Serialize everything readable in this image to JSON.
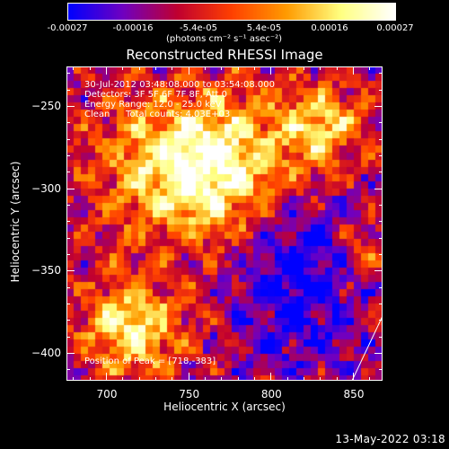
{
  "colorbar": {
    "tick_labels": [
      "-0.00027",
      "-0.00016",
      "-5.4e-05",
      "5.4e-05",
      "0.00016",
      "0.00027"
    ],
    "units": "(photons cm⁻² s⁻¹ asec⁻²)"
  },
  "annotations": {
    "time": "30-Jul-2012 03:48:08.000 to 03:54:08.000",
    "detectors": "Detectors: 3F 5F 6F 7F 8F, Att 0",
    "energy": "Energy Range: 12.0 - 25.0 keV",
    "clean": "Clean",
    "counts": "Total counts: 4.03E+03",
    "peak": "Position of Peak = [718,-383]"
  },
  "footer": "13-May-2022 03:18",
  "chart_data": {
    "type": "heatmap",
    "title": "Reconstructed RHESSI Image",
    "xlabel": "Heliocentric X (arcsec)",
    "ylabel": "Heliocentric Y (arcsec)",
    "xlim": [
      676,
      868
    ],
    "ylim": [
      -417,
      -226
    ],
    "x_ticks": [
      700,
      750,
      800,
      850
    ],
    "y_ticks": [
      -250,
      -300,
      -350,
      -400
    ],
    "x_tick_labels": [
      "700",
      "750",
      "800",
      "850"
    ],
    "y_tick_labels": [
      "−250",
      "−300",
      "−350",
      "−400"
    ],
    "value_range": [
      -0.00027,
      0.00027
    ],
    "colormap": [
      "#0000ff",
      "#7000c0",
      "#c00030",
      "#ff4000",
      "#ff9a00",
      "#ffff80",
      "#ffffff"
    ],
    "peak": [
      718,
      -383
    ],
    "solar_limb_visible": true
  }
}
